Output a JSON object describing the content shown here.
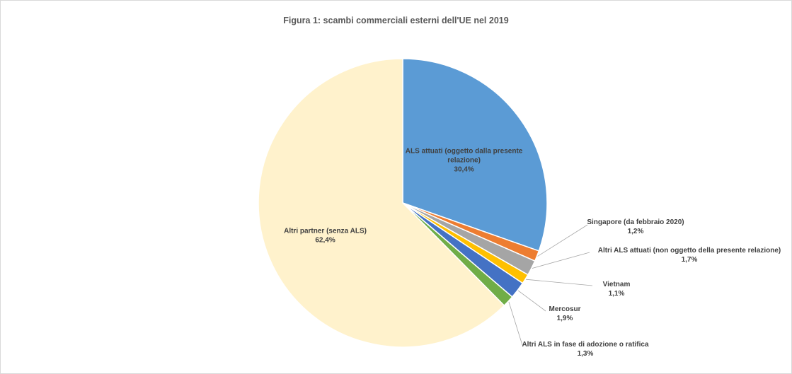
{
  "chart_data": {
    "type": "pie",
    "title": "Figura 1: scambi commerciali esterni dell'UE nel 2019",
    "slices": [
      {
        "name": "ALS attuati (oggetto dalla presente relazione)",
        "label_lines": [
          "ALS attuati (oggetto dalla presente",
          "relazione)"
        ],
        "value": 30.4,
        "value_label": "30,4%",
        "color": "#5b9bd5"
      },
      {
        "name": "Singapore (da febbraio 2020)",
        "label_lines": [
          "Singapore (da febbraio 2020)"
        ],
        "value": 1.2,
        "value_label": "1,2%",
        "color": "#ed7d31"
      },
      {
        "name": "Altri ALS attuati (non oggetto della presente relazione)",
        "label_lines": [
          "Altri ALS attuati (non oggetto della presente relazione)"
        ],
        "value": 1.7,
        "value_label": "1,7%",
        "color": "#a5a5a5"
      },
      {
        "name": "Vietnam",
        "label_lines": [
          "Vietnam"
        ],
        "value": 1.1,
        "value_label": "1,1%",
        "color": "#ffc000"
      },
      {
        "name": "Mercosur",
        "label_lines": [
          "Mercosur"
        ],
        "value": 1.9,
        "value_label": "1,9%",
        "color": "#4472c4"
      },
      {
        "name": "Altri ALS in fase di adozione o ratifica",
        "label_lines": [
          "Altri ALS in fase di adozione o ratifica"
        ],
        "value": 1.3,
        "value_label": "1,3%",
        "color": "#70ad47"
      },
      {
        "name": "Altri partner (senza ALS)",
        "label_lines": [
          "Altri partner (senza ALS)"
        ],
        "value": 62.4,
        "value_label": "62,4%",
        "color": "#fff2cc"
      }
    ]
  }
}
